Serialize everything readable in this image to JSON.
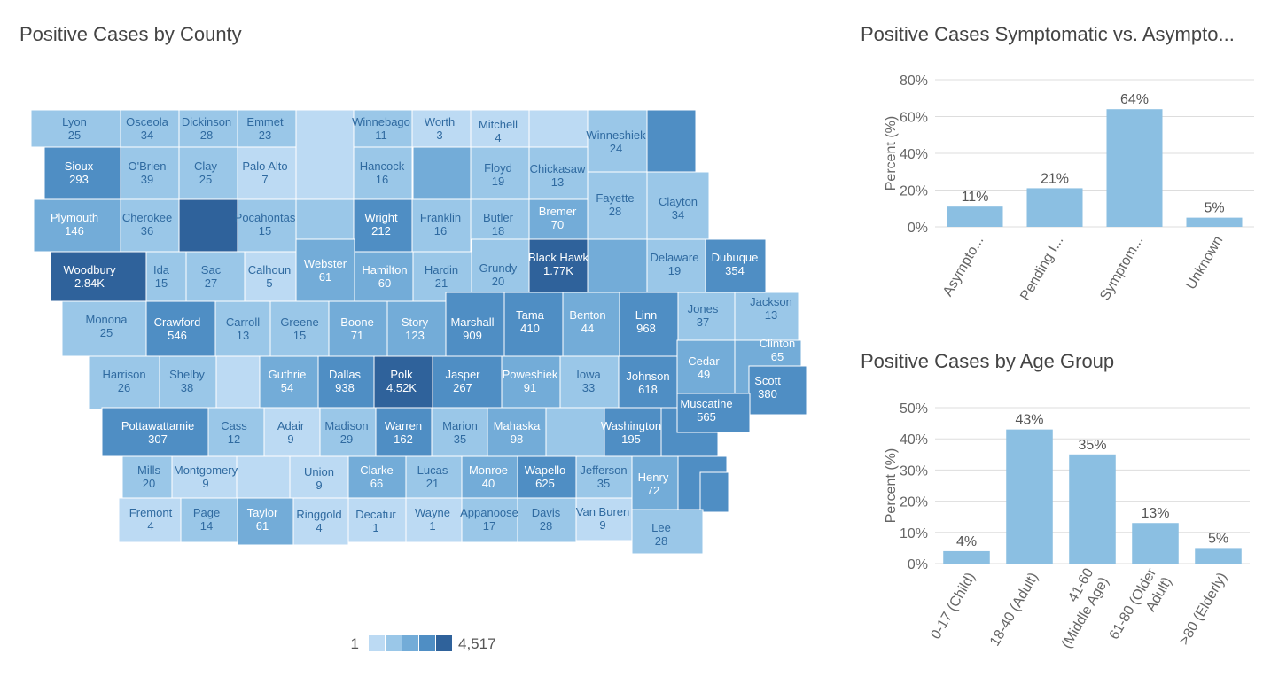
{
  "titles": {
    "map": "Positive Cases by County",
    "symptomatic": "Positive Cases Symptomatic vs. Asympto...",
    "age": "Positive Cases by Age Group"
  },
  "colors": {
    "ramp": [
      "#bcdaf3",
      "#9ac7e8",
      "#73acd8",
      "#4f8ec4",
      "#2f629b"
    ],
    "bar": "#8bbfe2"
  },
  "map_legend": {
    "min": "1",
    "max": "4,517"
  },
  "chart_data": [
    {
      "type": "map",
      "title": "Positive Cases by County",
      "legend_min": "1",
      "legend_max": "4,517",
      "counties": [
        {
          "name": "Lyon",
          "label": "25",
          "value": 25
        },
        {
          "name": "Osceola",
          "label": "34",
          "value": 34
        },
        {
          "name": "Dickinson",
          "label": "28",
          "value": 28
        },
        {
          "name": "Emmet",
          "label": "23",
          "value": 23
        },
        {
          "name": "Winnebago",
          "label": "11",
          "value": 11
        },
        {
          "name": "Worth",
          "label": "3",
          "value": 3
        },
        {
          "name": "Mitchell",
          "label": "4",
          "value": 4
        },
        {
          "name": "Winneshiek",
          "label": "24",
          "value": 24
        },
        {
          "name": "Sioux",
          "label": "293",
          "value": 293
        },
        {
          "name": "O'Brien",
          "label": "39",
          "value": 39
        },
        {
          "name": "Clay",
          "label": "25",
          "value": 25
        },
        {
          "name": "Palo Alto",
          "label": "7",
          "value": 7
        },
        {
          "name": "Hancock",
          "label": "16",
          "value": 16
        },
        {
          "name": "Floyd",
          "label": "19",
          "value": 19
        },
        {
          "name": "Chickasaw",
          "label": "13",
          "value": 13
        },
        {
          "name": "Fayette",
          "label": "28",
          "value": 28
        },
        {
          "name": "Clayton",
          "label": "34",
          "value": 34
        },
        {
          "name": "Plymouth",
          "label": "146",
          "value": 146
        },
        {
          "name": "Cherokee",
          "label": "36",
          "value": 36
        },
        {
          "name": "Pocahontas",
          "label": "15",
          "value": 15
        },
        {
          "name": "Wright",
          "label": "212",
          "value": 212
        },
        {
          "name": "Franklin",
          "label": "16",
          "value": 16
        },
        {
          "name": "Butler",
          "label": "18",
          "value": 18
        },
        {
          "name": "Bremer",
          "label": "70",
          "value": 70
        },
        {
          "name": "Woodbury",
          "label": "2.84K",
          "value": 2840
        },
        {
          "name": "Ida",
          "label": "15",
          "value": 15
        },
        {
          "name": "Sac",
          "label": "27",
          "value": 27
        },
        {
          "name": "Calhoun",
          "label": "5",
          "value": 5
        },
        {
          "name": "Webster",
          "label": "61",
          "value": 61
        },
        {
          "name": "Hamilton",
          "label": "60",
          "value": 60
        },
        {
          "name": "Hardin",
          "label": "21",
          "value": 21
        },
        {
          "name": "Grundy",
          "label": "20",
          "value": 20
        },
        {
          "name": "Black Hawk",
          "label": "1.77K",
          "value": 1770
        },
        {
          "name": "Delaware",
          "label": "19",
          "value": 19
        },
        {
          "name": "Dubuque",
          "label": "354",
          "value": 354
        },
        {
          "name": "Monona",
          "label": "25",
          "value": 25
        },
        {
          "name": "Crawford",
          "label": "546",
          "value": 546
        },
        {
          "name": "Carroll",
          "label": "13",
          "value": 13
        },
        {
          "name": "Greene",
          "label": "15",
          "value": 15
        },
        {
          "name": "Boone",
          "label": "71",
          "value": 71
        },
        {
          "name": "Story",
          "label": "123",
          "value": 123
        },
        {
          "name": "Marshall",
          "label": "909",
          "value": 909
        },
        {
          "name": "Tama",
          "label": "410",
          "value": 410
        },
        {
          "name": "Benton",
          "label": "44",
          "value": 44
        },
        {
          "name": "Linn",
          "label": "968",
          "value": 968
        },
        {
          "name": "Jones",
          "label": "37",
          "value": 37
        },
        {
          "name": "Jackson",
          "label": "13",
          "value": 13
        },
        {
          "name": "Harrison",
          "label": "26",
          "value": 26
        },
        {
          "name": "Shelby",
          "label": "38",
          "value": 38
        },
        {
          "name": "Guthrie",
          "label": "54",
          "value": 54
        },
        {
          "name": "Dallas",
          "label": "938",
          "value": 938
        },
        {
          "name": "Polk",
          "label": "4.52K",
          "value": 4517
        },
        {
          "name": "Jasper",
          "label": "267",
          "value": 267
        },
        {
          "name": "Poweshiek",
          "label": "91",
          "value": 91
        },
        {
          "name": "Iowa",
          "label": "33",
          "value": 33
        },
        {
          "name": "Johnson",
          "label": "618",
          "value": 618
        },
        {
          "name": "Cedar",
          "label": "49",
          "value": 49
        },
        {
          "name": "Clinton",
          "label": "65",
          "value": 65
        },
        {
          "name": "Scott",
          "label": "380",
          "value": 380
        },
        {
          "name": "Muscatine",
          "label": "565",
          "value": 565
        },
        {
          "name": "Pottawattamie",
          "label": "307",
          "value": 307
        },
        {
          "name": "Cass",
          "label": "12",
          "value": 12
        },
        {
          "name": "Adair",
          "label": "9",
          "value": 9
        },
        {
          "name": "Madison",
          "label": "29",
          "value": 29
        },
        {
          "name": "Warren",
          "label": "162",
          "value": 162
        },
        {
          "name": "Marion",
          "label": "35",
          "value": 35
        },
        {
          "name": "Mahaska",
          "label": "98",
          "value": 98
        },
        {
          "name": "Washington",
          "label": "195",
          "value": 195
        },
        {
          "name": "Mills",
          "label": "20",
          "value": 20
        },
        {
          "name": "Montgomery",
          "label": "9",
          "value": 9
        },
        {
          "name": "Union",
          "label": "9",
          "value": 9
        },
        {
          "name": "Clarke",
          "label": "66",
          "value": 66
        },
        {
          "name": "Lucas",
          "label": "21",
          "value": 21
        },
        {
          "name": "Monroe",
          "label": "40",
          "value": 40
        },
        {
          "name": "Wapello",
          "label": "625",
          "value": 625
        },
        {
          "name": "Jefferson",
          "label": "35",
          "value": 35
        },
        {
          "name": "Henry",
          "label": "72",
          "value": 72
        },
        {
          "name": "Fremont",
          "label": "4",
          "value": 4
        },
        {
          "name": "Page",
          "label": "14",
          "value": 14
        },
        {
          "name": "Taylor",
          "label": "61",
          "value": 61
        },
        {
          "name": "Ringgold",
          "label": "4",
          "value": 4
        },
        {
          "name": "Decatur",
          "label": "1",
          "value": 1
        },
        {
          "name": "Wayne",
          "label": "1",
          "value": 1
        },
        {
          "name": "Appanoose",
          "label": "17",
          "value": 17
        },
        {
          "name": "Davis",
          "label": "28",
          "value": 28
        },
        {
          "name": "Van Buren",
          "label": "9",
          "value": 9
        },
        {
          "name": "Lee",
          "label": "28",
          "value": 28
        }
      ]
    },
    {
      "type": "bar",
      "title": "Positive Cases Symptomatic vs. Asympto...",
      "categories": [
        "Asympto...",
        "Pending I...",
        "Symptom...",
        "Unknown"
      ],
      "values": [
        11,
        21,
        64,
        5
      ],
      "value_labels": [
        "11%",
        "21%",
        "64%",
        "5%"
      ],
      "ylabel": "Percent (%)",
      "ylim": [
        0,
        80
      ],
      "yticks": [
        "0%",
        "20%",
        "40%",
        "60%",
        "80%"
      ],
      "grid": true
    },
    {
      "type": "bar",
      "title": "Positive Cases by Age Group",
      "categories": [
        [
          "0-17 (Child)"
        ],
        [
          "18-40 (Adult)"
        ],
        [
          "41-60",
          "(Middle Age)"
        ],
        [
          "61-80 (Older",
          "Adult)"
        ],
        [
          ">80 (Elderly)"
        ]
      ],
      "values": [
        4,
        43,
        35,
        13,
        5
      ],
      "value_labels": [
        "4%",
        "43%",
        "35%",
        "13%",
        "5%"
      ],
      "ylabel": "Percent (%)",
      "ylim": [
        0,
        50
      ],
      "yticks": [
        "0%",
        "10%",
        "20%",
        "30%",
        "40%",
        "50%"
      ],
      "grid": true
    }
  ]
}
